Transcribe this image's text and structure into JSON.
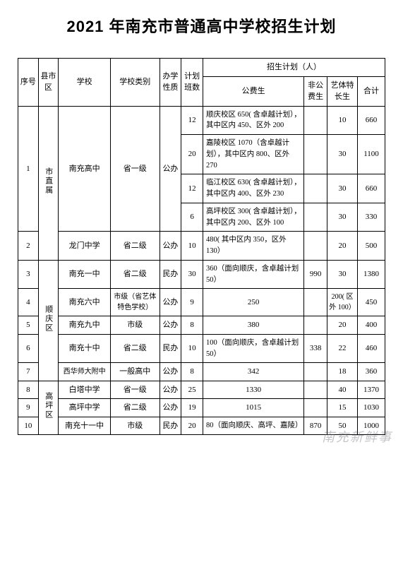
{
  "title": "2021 年南充市普通高中学校招生计划",
  "watermark": "南充新鲜事",
  "header": {
    "seq": "序号",
    "district": "县市区",
    "school": "学校",
    "type": "学校类别",
    "nature": "办学性质",
    "classes": "计划班数",
    "plan_group": "招生计划（人）",
    "public": "公费生",
    "nonpublic": "非公费生",
    "art": "艺体特长生",
    "total": "合计"
  },
  "districts": {
    "d1": "市直属",
    "d2": "顺庆区",
    "d3": "高坪区"
  },
  "rows": [
    {
      "seq": "1",
      "school": "南充高中",
      "type": "省一级",
      "nature": "公办",
      "subrows": [
        {
          "classes": "12",
          "public": "顺庆校区 650( 含卓越计划），其中区内 450、区外 200",
          "nonpublic": "",
          "art": "10",
          "total": "660"
        },
        {
          "classes": "20",
          "public": "嘉陵校区 1070（含卓越计划），其中区内 800、区外 270",
          "nonpublic": "",
          "art": "30",
          "total": "1100"
        },
        {
          "classes": "12",
          "public": "临江校区 630( 含卓越计划），其中区内 400、区外 230",
          "nonpublic": "",
          "art": "30",
          "total": "660"
        },
        {
          "classes": "6",
          "public": "高坪校区 300( 含卓越计划），其中区内 200、区外 100",
          "nonpublic": "",
          "art": "30",
          "total": "330"
        }
      ]
    },
    {
      "seq": "2",
      "school": "龙门中学",
      "type": "省二级",
      "nature": "公办",
      "classes": "10",
      "public": "480( 其中区内 350，区外 130）",
      "nonpublic": "",
      "art": "20",
      "total": "500"
    },
    {
      "seq": "3",
      "school": "南充一中",
      "type": "省二级",
      "nature": "民办",
      "classes": "30",
      "public": "360（面向顺庆，含卓越计划 50）",
      "nonpublic": "990",
      "art": "30",
      "total": "1380"
    },
    {
      "seq": "4",
      "school": "南充六中",
      "type": "市级（省艺体特色学校）",
      "nature": "公办",
      "classes": "9",
      "public": "250",
      "nonpublic": "",
      "art": "200( 区外 100）",
      "total": "450"
    },
    {
      "seq": "5",
      "school": "南充九中",
      "type": "市级",
      "nature": "公办",
      "classes": "8",
      "public": "380",
      "nonpublic": "",
      "art": "20",
      "total": "400"
    },
    {
      "seq": "6",
      "school": "南充十中",
      "type": "省二级",
      "nature": "民办",
      "classes": "10",
      "public": "100（面向顺庆，含卓越计划 50）",
      "nonpublic": "338",
      "art": "22",
      "total": "460"
    },
    {
      "seq": "7",
      "school": "西华师大附中",
      "type": "一般高中",
      "nature": "公办",
      "classes": "8",
      "public": "342",
      "nonpublic": "",
      "art": "18",
      "total": "360"
    },
    {
      "seq": "8",
      "school": "白塔中学",
      "type": "省一级",
      "nature": "公办",
      "classes": "25",
      "public": "1330",
      "nonpublic": "",
      "art": "40",
      "total": "1370"
    },
    {
      "seq": "9",
      "school": "高坪中学",
      "type": "省二级",
      "nature": "公办",
      "classes": "19",
      "public": "1015",
      "nonpublic": "",
      "art": "15",
      "total": "1030"
    },
    {
      "seq": "10",
      "school": "南充十一中",
      "type": "市级",
      "nature": "民办",
      "classes": "20",
      "public": "80（面向顺庆、高坪、嘉陵）",
      "nonpublic": "870",
      "art": "50",
      "total": "1000"
    }
  ]
}
